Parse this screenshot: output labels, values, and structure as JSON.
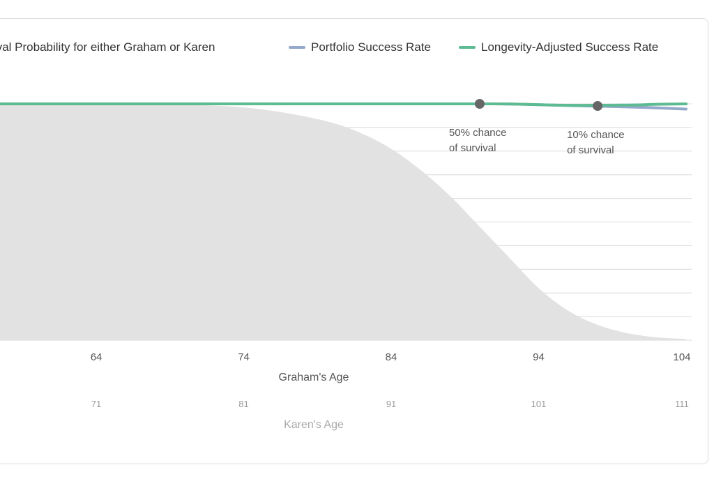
{
  "legend": {
    "survival_label": "Survival Probability for either Graham or Karen",
    "portfolio_label": "Portfolio Success Rate",
    "longevity_label": "Longevity-Adjusted Success Rate"
  },
  "colors": {
    "survival": "#e2e2e2",
    "portfolio": "#93a8ca",
    "longevity": "#5dbb93",
    "marker": "#666666",
    "grid": "#d9d9d9"
  },
  "chart_data": {
    "type": "area",
    "x_axis_primary": {
      "label": "Graham's Age",
      "ticks": [
        "64",
        "74",
        "84",
        "94",
        "104"
      ],
      "range": [
        57,
        104
      ]
    },
    "x_axis_secondary": {
      "label": "Karen's Age",
      "ticks": [
        "71",
        "81",
        "91",
        "101",
        "111"
      ]
    },
    "y_range": [
      0,
      100
    ],
    "series": [
      {
        "name": "Survival Probability for either Graham or Karen",
        "x": [
          57,
          64,
          68,
          71,
          74,
          77,
          80,
          82,
          84,
          86,
          88,
          90,
          92,
          94,
          96,
          98,
          100,
          102,
          104
        ],
        "values": [
          100,
          100,
          100,
          99.5,
          98.5,
          96,
          92,
          87.5,
          81,
          72,
          61,
          48,
          35,
          22,
          12.5,
          6.5,
          3,
          1.2,
          0.5
        ]
      },
      {
        "name": "Portfolio Success Rate",
        "x": [
          57,
          64,
          74,
          84,
          91,
          93,
          96,
          100,
          102,
          104
        ],
        "values": [
          100,
          100,
          100,
          100,
          100,
          99.8,
          99.3,
          98.7,
          98.3,
          97.8
        ]
      },
      {
        "name": "Longevity-Adjusted Success Rate",
        "x": [
          57,
          64,
          74,
          84,
          91,
          93,
          96,
          100,
          102,
          104
        ],
        "values": [
          100,
          100,
          100,
          100,
          100,
          99.8,
          99.4,
          99.5,
          99.8,
          100
        ]
      }
    ],
    "annotations": [
      {
        "line1": "50% chance",
        "line2": "of survival",
        "x": 90,
        "y": 100
      },
      {
        "line1": "10% chance",
        "line2": "of survival",
        "x": 98,
        "y": 99.1
      }
    ],
    "grid": true
  }
}
